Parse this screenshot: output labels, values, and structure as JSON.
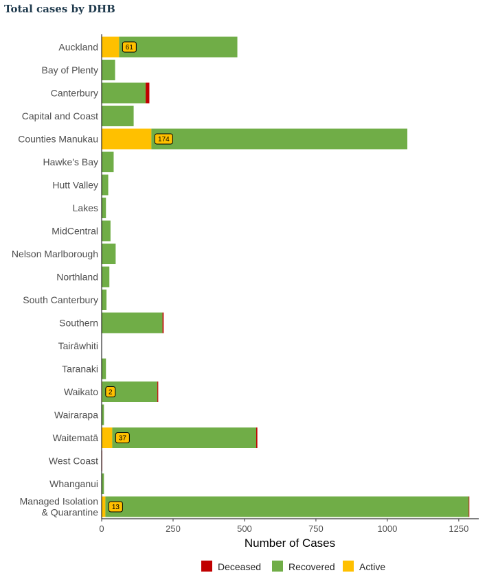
{
  "title": "Total cases by DHB",
  "chart_data": {
    "type": "bar",
    "orientation": "horizontal",
    "stacked": true,
    "title": "Total cases by DHB",
    "xlabel": "Number of Cases",
    "ylabel": "",
    "xlim": [
      0,
      1320
    ],
    "xticks": [
      0,
      250,
      500,
      750,
      1000,
      1250
    ],
    "grid": false,
    "legend_position": "bottom",
    "categories": [
      "Auckland",
      "Bay of Plenty",
      "Canterbury",
      "Capital and Coast",
      "Counties Manukau",
      "Hawke's Bay",
      "Hutt Valley",
      "Lakes",
      "MidCentral",
      "Nelson Marlborough",
      "Northland",
      "South Canterbury",
      "Southern",
      "Tairāwhiti",
      "Taranaki",
      "Waikato",
      "Wairarapa",
      "Waitematā",
      "West Coast",
      "Whanganui",
      [
        "Managed Isolation",
        "& Quarantine"
      ]
    ],
    "series": [
      {
        "name": "Active",
        "color": "#ffc000",
        "values": [
          61,
          0,
          0,
          0,
          174,
          0,
          0,
          0,
          0,
          0,
          0,
          0,
          0,
          0,
          0,
          2,
          0,
          37,
          0,
          0,
          13
        ]
      },
      {
        "name": "Recovered",
        "color": "#70ad47",
        "values": [
          414,
          47,
          154,
          112,
          896,
          42,
          23,
          15,
          31,
          49,
          27,
          17,
          213,
          0,
          15,
          193,
          8,
          504,
          0,
          8,
          1272
        ]
      },
      {
        "name": "Deceased",
        "color": "#c00000",
        "values": [
          0,
          0,
          13,
          0,
          0,
          0,
          0,
          0,
          0,
          0,
          0,
          0,
          4,
          0,
          0,
          3,
          0,
          4,
          1,
          0,
          2
        ]
      }
    ],
    "data_labels": [
      "61",
      null,
      null,
      null,
      "174",
      null,
      null,
      null,
      null,
      null,
      null,
      null,
      null,
      null,
      null,
      "2",
      null,
      "37",
      null,
      null,
      "13"
    ],
    "legend": [
      {
        "name": "Deceased",
        "color": "#c00000"
      },
      {
        "name": "Recovered",
        "color": "#70ad47"
      },
      {
        "name": "Active",
        "color": "#ffc000"
      }
    ]
  }
}
